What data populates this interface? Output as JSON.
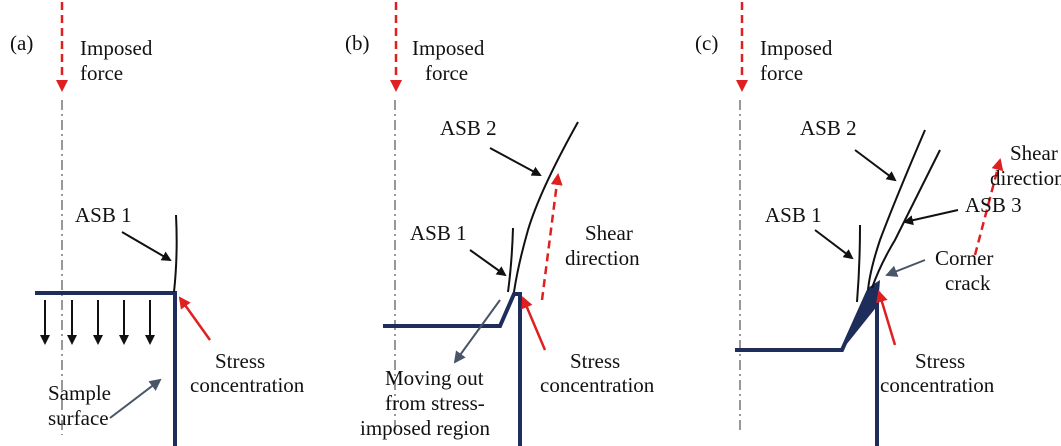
{
  "panels": [
    {
      "label": "(a)",
      "force": [
        "Imposed",
        "force"
      ],
      "asb1": "ASB 1",
      "stress": [
        "Stress",
        "concentration"
      ],
      "surface": [
        "Sample",
        "surface"
      ]
    },
    {
      "label": "(b)",
      "force": [
        "Imposed",
        "force"
      ],
      "asb2": "ASB 2",
      "asb1": "ASB 1",
      "shear": [
        "Shear",
        "direction"
      ],
      "stress": [
        "Stress",
        "concentration"
      ],
      "moving": [
        "Moving out",
        "from stress-",
        "imposed region"
      ]
    },
    {
      "label": "(c)",
      "force": [
        "Imposed",
        "force"
      ],
      "asb2": "ASB 2",
      "shear": [
        "Shear",
        "direction"
      ],
      "asb3": "ASB 3",
      "asb1": "ASB 1",
      "crack": [
        "Corner",
        "crack"
      ],
      "stress": [
        "Stress",
        "concentration"
      ]
    }
  ]
}
